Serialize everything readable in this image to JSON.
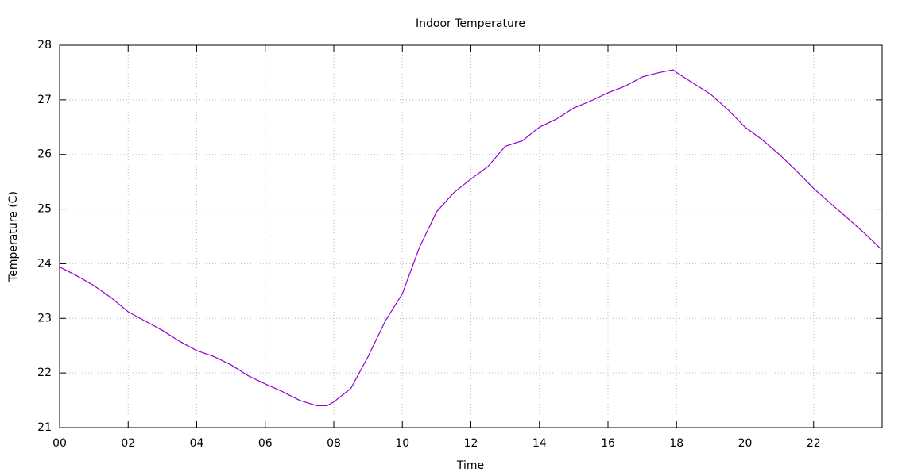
{
  "chart_data": {
    "type": "line",
    "title": "Indoor Temperature",
    "xlabel": "Time",
    "ylabel": "Temperature (C)",
    "x": [
      0,
      0.5,
      1,
      1.5,
      2,
      2.5,
      3,
      3.5,
      4,
      4.5,
      5,
      5.5,
      6,
      6.5,
      7,
      7.5,
      7.8,
      8,
      8.5,
      9,
      9.5,
      10,
      10.5,
      11,
      11.5,
      12,
      12.5,
      13,
      13.5,
      14,
      14.5,
      15,
      15.5,
      16,
      16.5,
      17,
      17.5,
      17.9,
      18,
      18.5,
      19,
      19.5,
      20,
      20.5,
      21,
      21.5,
      22,
      22.5,
      23,
      23.5,
      23.95
    ],
    "series": [
      {
        "color": "#9400d3",
        "values": [
          23.94,
          23.78,
          23.6,
          23.38,
          23.12,
          22.95,
          22.78,
          22.58,
          22.41,
          22.3,
          22.15,
          21.95,
          21.8,
          21.66,
          21.5,
          21.4,
          21.4,
          21.47,
          21.72,
          22.3,
          22.95,
          23.45,
          24.3,
          24.95,
          25.3,
          25.55,
          25.78,
          26.15,
          26.25,
          26.5,
          26.65,
          26.85,
          26.98,
          27.13,
          27.25,
          27.42,
          27.5,
          27.55,
          27.5,
          27.3,
          27.1,
          26.82,
          26.5,
          26.27,
          26.0,
          25.7,
          25.38,
          25.1,
          24.83,
          24.55,
          24.28
        ]
      }
    ],
    "xlim": [
      0,
      24
    ],
    "ylim": [
      21,
      28
    ],
    "xticks": [
      {
        "value": 0,
        "label": "00"
      },
      {
        "value": 2,
        "label": "02"
      },
      {
        "value": 4,
        "label": "04"
      },
      {
        "value": 6,
        "label": "06"
      },
      {
        "value": 8,
        "label": "08"
      },
      10,
      12,
      14,
      16,
      18,
      20,
      22
    ],
    "yticks": [
      21,
      22,
      23,
      24,
      25,
      26,
      27,
      28
    ],
    "grid": true
  }
}
